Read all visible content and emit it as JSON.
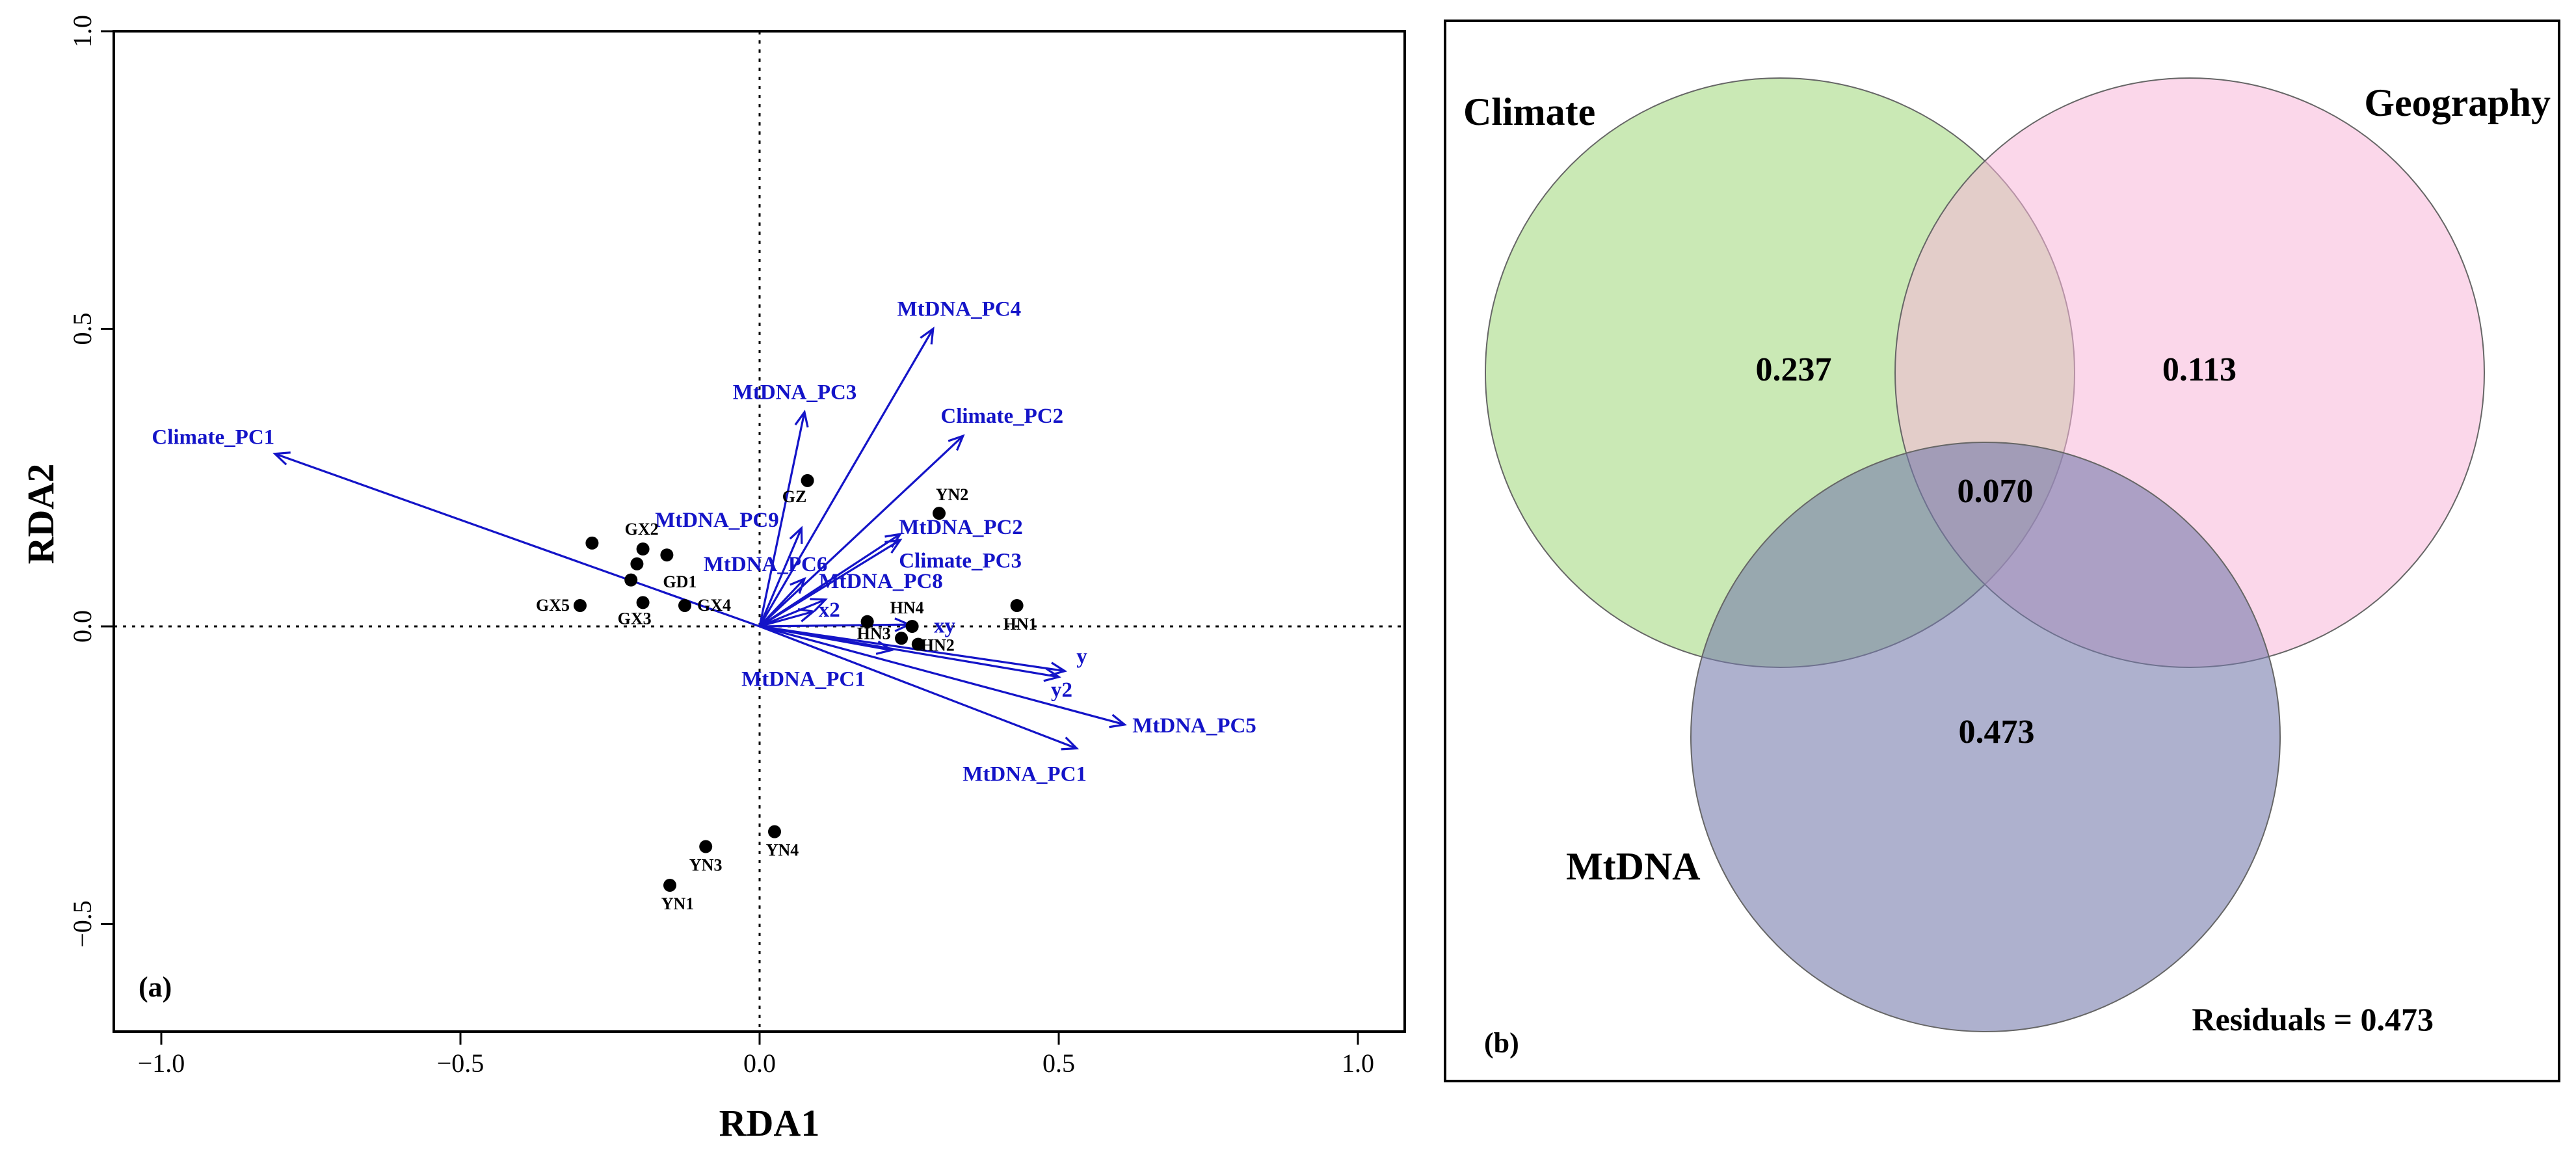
{
  "colors": {
    "vector": "#1414c8",
    "point": "#000000",
    "frame": "#000000",
    "climate_fill": "#b4e096",
    "geography_fill": "#f7b6d8",
    "mtdna_fill": "#7378ab"
  },
  "chart_data": [
    {
      "type": "scatter",
      "subtype": "rda-biplot",
      "panel": "(a)",
      "xlabel": "RDA1",
      "ylabel": "RDA2",
      "xlim": [
        -1.07,
        1.08
      ],
      "ylim": [
        -0.67,
        1.0
      ],
      "xticks": [
        -1.0,
        -0.5,
        0.0,
        0.5,
        1.0
      ],
      "xtick_labels": [
        "−1.0",
        "−0.5",
        "0.0",
        "0.5",
        "1.0"
      ],
      "yticks": [
        -0.5,
        0.0,
        0.5,
        1.0
      ],
      "ytick_labels": [
        "−0.5",
        "0.0",
        "0.5",
        "1.0"
      ],
      "reference_lines": {
        "x": 0,
        "y": 0,
        "style": "dotted"
      },
      "points": [
        {
          "x": 0.08,
          "y": 0.245,
          "label": "GZ"
        },
        {
          "x": 0.3,
          "y": 0.19,
          "label": "YN2"
        },
        {
          "x": 0.43,
          "y": 0.035,
          "label": "HN1"
        },
        {
          "x": -0.28,
          "y": 0.14,
          "label": ""
        },
        {
          "x": -0.195,
          "y": 0.13,
          "label": "GX2"
        },
        {
          "x": -0.155,
          "y": 0.12,
          "label": "GD1"
        },
        {
          "x": -0.205,
          "y": 0.105,
          "label": ""
        },
        {
          "x": -0.215,
          "y": 0.078,
          "label": ""
        },
        {
          "x": -0.3,
          "y": 0.035,
          "label": "GX5"
        },
        {
          "x": -0.195,
          "y": 0.04,
          "label": "GX3"
        },
        {
          "x": -0.125,
          "y": 0.035,
          "label": "GX4"
        },
        {
          "x": 0.18,
          "y": 0.008,
          "label": "HN3"
        },
        {
          "x": 0.255,
          "y": 0.0,
          "label": "HN4"
        },
        {
          "x": 0.237,
          "y": -0.02,
          "label": ""
        },
        {
          "x": 0.265,
          "y": -0.03,
          "label": "HN2"
        },
        {
          "x": 0.025,
          "y": -0.345,
          "label": "YN4"
        },
        {
          "x": -0.09,
          "y": -0.37,
          "label": "YN3"
        },
        {
          "x": -0.15,
          "y": -0.435,
          "label": "YN1"
        }
      ],
      "vectors": [
        {
          "name": "Climate_PC1",
          "x": -0.81,
          "y": 0.29
        },
        {
          "name": "MtDNA_PC4",
          "x": 0.29,
          "y": 0.5
        },
        {
          "name": "MtDNA_PC3",
          "x": 0.075,
          "y": 0.36
        },
        {
          "name": "Climate_PC2",
          "x": 0.34,
          "y": 0.32
        },
        {
          "name": "MtDNA_PC9",
          "x": 0.07,
          "y": 0.165
        },
        {
          "name": "MtDNA_PC2",
          "x": 0.235,
          "y": 0.155
        },
        {
          "name": "Climate_PC3",
          "x": 0.235,
          "y": 0.145
        },
        {
          "name": "MtDNA_PC6",
          "x": 0.075,
          "y": 0.08
        },
        {
          "name": "MtDNA_PC8",
          "x": 0.11,
          "y": 0.045
        },
        {
          "name": "x2",
          "x": 0.09,
          "y": 0.025
        },
        {
          "name": "xy",
          "x": 0.25,
          "y": 0.003
        },
        {
          "name": "y",
          "x": 0.51,
          "y": -0.075
        },
        {
          "name": "y2",
          "x": 0.5,
          "y": -0.085
        },
        {
          "name": "MtDNA_PC5",
          "x": 0.61,
          "y": -0.165
        },
        {
          "name": "MtDNA_PC1",
          "x": 0.53,
          "y": -0.205
        },
        {
          "name": "MtDNA_PC1",
          "x": 0.22,
          "y": -0.04
        }
      ]
    },
    {
      "type": "venn",
      "panel": "(b)",
      "sets": [
        {
          "name": "Climate",
          "unique": "0.237"
        },
        {
          "name": "Geography",
          "unique": "0.113"
        },
        {
          "name": "MtDNA",
          "unique": "0.473"
        }
      ],
      "shared_all": "0.070",
      "residuals_text": "Residuals = 0.473"
    }
  ]
}
